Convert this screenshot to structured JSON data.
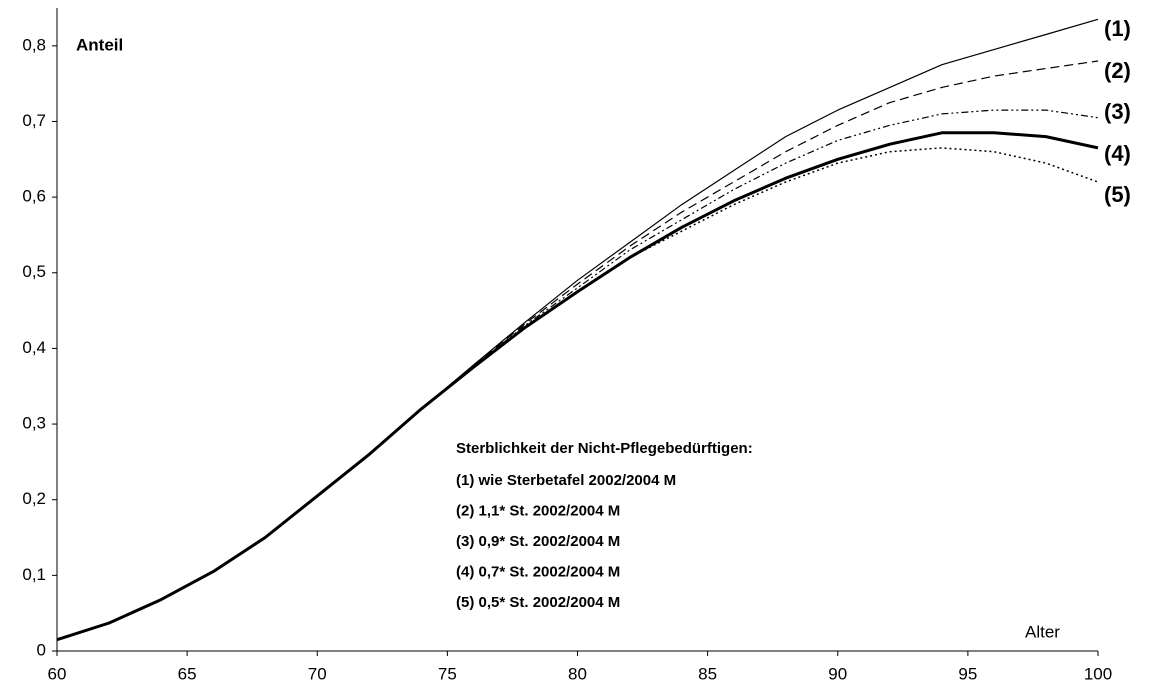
{
  "chart_data": {
    "type": "line",
    "y_label": "Anteil",
    "x_label": "Alter",
    "x": [
      60,
      62,
      64,
      66,
      68,
      70,
      72,
      74,
      76,
      78,
      80,
      82,
      84,
      86,
      88,
      90,
      92,
      94,
      96,
      98,
      100
    ],
    "series": [
      {
        "name": "(1)",
        "color": "#000000",
        "width": 1.2,
        "dash": "none",
        "values": [
          0.015,
          0.037,
          0.068,
          0.105,
          0.15,
          0.205,
          0.26,
          0.32,
          0.378,
          0.435,
          0.49,
          0.54,
          0.59,
          0.635,
          0.68,
          0.715,
          0.745,
          0.775,
          0.795,
          0.815,
          0.835
        ]
      },
      {
        "name": "(2)",
        "color": "#000000",
        "width": 1.2,
        "dash": "9,5",
        "values": [
          0.015,
          0.037,
          0.068,
          0.105,
          0.15,
          0.205,
          0.26,
          0.32,
          0.377,
          0.433,
          0.485,
          0.535,
          0.58,
          0.62,
          0.66,
          0.695,
          0.725,
          0.745,
          0.76,
          0.77,
          0.78
        ]
      },
      {
        "name": "(3)",
        "color": "#000000",
        "width": 1.2,
        "dash": "7,3,2,3,2,3",
        "values": [
          0.015,
          0.037,
          0.068,
          0.105,
          0.15,
          0.205,
          0.26,
          0.32,
          0.376,
          0.431,
          0.48,
          0.53,
          0.57,
          0.61,
          0.645,
          0.675,
          0.695,
          0.71,
          0.715,
          0.715,
          0.705
        ]
      },
      {
        "name": "(4)",
        "color": "#000000",
        "width": 3,
        "dash": "none",
        "values": [
          0.015,
          0.037,
          0.068,
          0.105,
          0.15,
          0.205,
          0.26,
          0.32,
          0.375,
          0.428,
          0.475,
          0.52,
          0.56,
          0.595,
          0.625,
          0.65,
          0.67,
          0.685,
          0.685,
          0.68,
          0.665
        ]
      },
      {
        "name": "(5)",
        "color": "#000000",
        "width": 1.5,
        "dash": "2,3",
        "values": [
          0.015,
          0.037,
          0.068,
          0.105,
          0.15,
          0.205,
          0.26,
          0.32,
          0.375,
          0.428,
          0.475,
          0.52,
          0.555,
          0.59,
          0.62,
          0.645,
          0.66,
          0.665,
          0.66,
          0.645,
          0.62
        ]
      }
    ],
    "legend_title": "Sterblichkeit der Nicht-Pflegebedürftigen:",
    "legend_entries": [
      "(1) wie Sterbetafel 2002/2004 M",
      "(2) 1,1* St. 2002/2004 M",
      "(3) 0,9* St. 2002/2004 M",
      "(4) 0,7* St. 2002/2004 M",
      "(5) 0,5* St. 2002/2004 M"
    ],
    "xlim": [
      60,
      100
    ],
    "xticks": [
      60,
      65,
      70,
      75,
      80,
      85,
      90,
      95,
      100
    ],
    "ylim": [
      0,
      0.85
    ],
    "yticks": [
      0,
      {
        "value": 0.1,
        "label": "0,1"
      },
      {
        "value": 0.2,
        "label": "0,2"
      },
      {
        "value": 0.3,
        "label": "0,3"
      },
      {
        "value": 0.4,
        "label": "0,4"
      },
      {
        "value": 0.5,
        "label": "0,5"
      },
      {
        "value": 0.6,
        "label": "0,6"
      },
      {
        "value": 0.7,
        "label": "0,7"
      },
      {
        "value": 0.8,
        "label": "0,8"
      }
    ],
    "grid": false
  }
}
